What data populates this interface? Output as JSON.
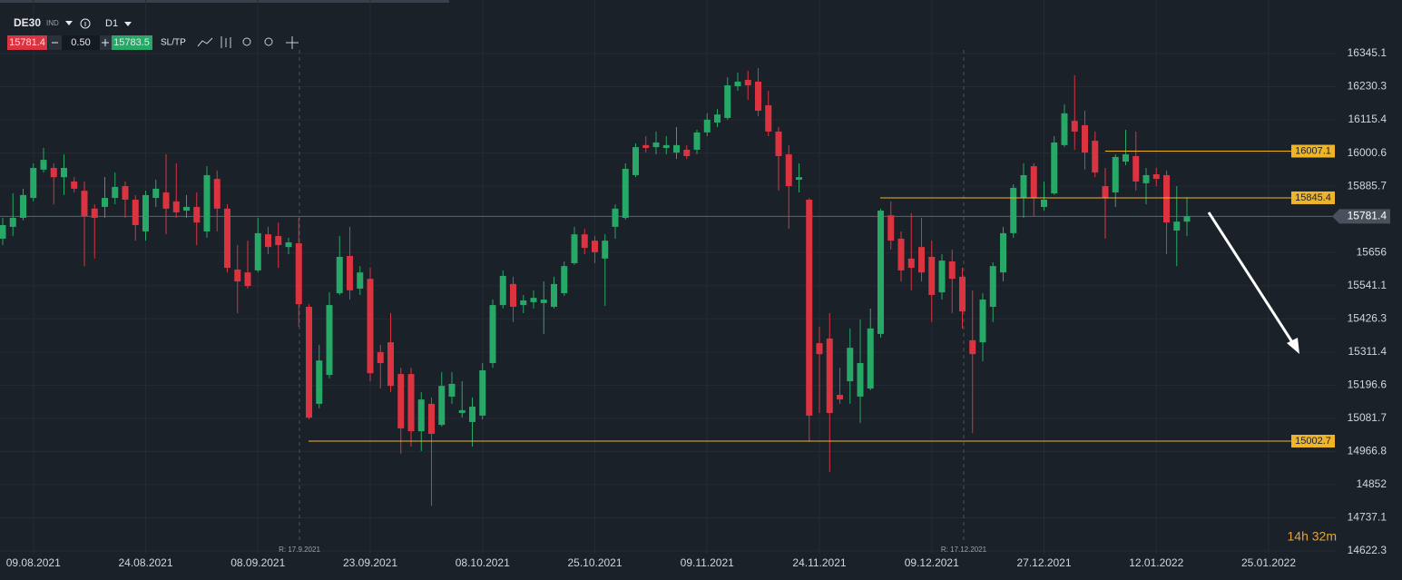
{
  "toolbar": {
    "symbol": "DE30",
    "market": "IND",
    "interval": "D1",
    "sell": "15781.4",
    "volume": "0.50",
    "buy": "15783.5",
    "sltp": "SL/TP"
  },
  "chart_data": {
    "type": "candlestick",
    "categories": [
      null,
      null,
      null,
      "09.08.2021",
      null,
      null,
      null,
      null,
      null,
      null,
      null,
      null,
      null,
      null,
      "24.08.2021",
      null,
      null,
      null,
      null,
      null,
      null,
      null,
      null,
      null,
      null,
      "08.09.2021",
      null,
      null,
      null,
      null,
      null,
      null,
      null,
      null,
      null,
      null,
      "23.09.2021",
      null,
      null,
      null,
      null,
      null,
      null,
      null,
      null,
      null,
      null,
      "08.10.2021",
      null,
      null,
      null,
      null,
      null,
      null,
      null,
      null,
      null,
      null,
      "25.10.2021",
      null,
      null,
      null,
      null,
      null,
      null,
      null,
      null,
      null,
      null,
      "09.11.2021",
      null,
      null,
      null,
      null,
      null,
      null,
      null,
      null,
      null,
      null,
      "24.11.2021",
      null,
      null,
      null,
      null,
      null,
      null,
      null,
      null,
      null,
      null,
      "09.12.2021",
      null,
      null,
      null,
      null,
      null,
      null,
      null,
      null,
      null,
      null,
      "27.12.2021",
      null,
      null,
      null,
      null,
      null,
      null,
      null,
      null,
      null,
      null,
      "12.01.2022",
      null,
      null,
      null,
      null,
      null,
      null,
      null,
      null,
      null,
      null,
      "25.01.2022",
      null,
      null,
      null,
      null,
      null,
      null
    ],
    "open": [
      15704,
      15745,
      15776,
      15845,
      15943,
      15949,
      15917,
      15902,
      15870,
      15808,
      15814,
      15845,
      15886,
      15839,
      15729,
      15845,
      15864,
      15833,
      15801,
      15814,
      15729,
      15911,
      15808,
      15597,
      15587,
      15594,
      15719,
      15713,
      15675,
      15688,
      15468,
      15132,
      15232,
      15515,
      15644,
      15531,
      15565,
      15311,
      15345,
      15235,
      15235,
      15037,
      15132,
      15059,
      15157,
      15100,
      15069,
      15091,
      15273,
      15474,
      15547,
      15474,
      15484,
      15481,
      15468,
      15515,
      15619,
      15719,
      15697,
      15635,
      15745,
      15776,
      15924,
      16028,
      16021,
      16018,
      16002,
      16012,
      16012,
      16072,
      16106,
      16122,
      16232,
      16254,
      16248,
      16166,
      16075,
      15996,
      15908,
      15839,
      15342,
      15358,
      15163,
      15210,
      15157,
      15185,
      15374,
      15785,
      15704,
      15635,
      15675,
      15641,
      15518,
      15625,
      15572,
      15352,
      15345,
      15468,
      15587,
      15723,
      15845,
      15955,
      15814,
      15861,
      16028,
      16112,
      16097,
      16043,
      15886,
      15864,
      15971,
      15990,
      15896,
      15927,
      15924,
      15732,
      15763,
      null,
      null,
      null,
      null,
      null,
      null,
      null,
      null,
      null,
      null,
      null,
      null,
      null,
      null
    ],
    "high": [
      15776,
      15861,
      15877,
      15965,
      16018,
      15965,
      15996,
      15917,
      15902,
      15823,
      15917,
      15933,
      15902,
      15855,
      15870,
      15908,
      15996,
      15965,
      15855,
      15864,
      15955,
      15940,
      15823,
      15682,
      15697,
      15776,
      15745,
      15760,
      15707,
      15776,
      15477,
      15336,
      15518,
      15713,
      15745,
      15609,
      15603,
      15336,
      15446,
      15257,
      15257,
      15172,
      15154,
      15242,
      15242,
      15210,
      15154,
      15273,
      15493,
      15594,
      15572,
      15509,
      15525,
      15556,
      15572,
      15625,
      15745,
      15738,
      15713,
      15719,
      15823,
      15965,
      16034,
      16059,
      16075,
      16059,
      16090,
      16028,
      16081,
      16138,
      16153,
      16263,
      16279,
      16285,
      16295,
      16216,
      16090,
      16028,
      15965,
      15845,
      15399,
      15446,
      15257,
      15393,
      15424,
      15462,
      15808,
      15833,
      15729,
      15792,
      15776,
      15697,
      15650,
      15666,
      15603,
      15525,
      15515,
      15622,
      15745,
      15892,
      15965,
      15965,
      15902,
      16059,
      16169,
      16270,
      16147,
      16075,
      15949,
      15996,
      16081,
      16075,
      15949,
      15949,
      15940,
      15886,
      15848,
      null,
      null,
      null,
      null,
      null,
      null,
      null,
      null,
      null,
      null,
      null,
      null,
      null,
      null
    ],
    "low": [
      15682,
      15713,
      15767,
      15833,
      15933,
      15823,
      15855,
      15864,
      15609,
      15635,
      15776,
      15823,
      15776,
      15697,
      15697,
      15814,
      15719,
      15776,
      15776,
      15682,
      15707,
      15729,
      15587,
      15446,
      15531,
      15587,
      15650,
      15603,
      15650,
      15399,
      15078,
      15116,
      15220,
      15509,
      15493,
      15509,
      15210,
      15185,
      15172,
      14959,
      14984,
      14968,
      14779,
      15053,
      15132,
      15084,
      14984,
      15078,
      15257,
      15462,
      15415,
      15446,
      15462,
      15374,
      15462,
      15506,
      15613,
      15650,
      15619,
      15471,
      15704,
      15770,
      15917,
      16002,
      15996,
      15996,
      15980,
      15980,
      15996,
      16059,
      16090,
      16116,
      16216,
      16185,
      16128,
      16059,
      15870,
      15738,
      15864,
      15000,
      15100,
      14896,
      15132,
      15132,
      15066,
      15179,
      15361,
      15666,
      15556,
      15525,
      15556,
      15415,
      15493,
      15446,
      15393,
      15031,
      15279,
      15415,
      15556,
      15707,
      15776,
      15782,
      15801,
      15855,
      16021,
      16012,
      15943,
      15917,
      15704,
      15814,
      15958,
      15870,
      15823,
      15886,
      15650,
      15609,
      15713,
      null,
      null,
      null,
      null,
      null,
      null,
      null,
      null,
      null,
      null,
      null,
      null,
      null,
      null
    ],
    "close": [
      15751,
      15776,
      15855,
      15949,
      15977,
      15917,
      15949,
      15877,
      15782,
      15776,
      15845,
      15883,
      15839,
      15751,
      15855,
      15877,
      15808,
      15795,
      15814,
      15760,
      15924,
      15808,
      15603,
      15556,
      15540,
      15723,
      15675,
      15682,
      15691,
      15477,
      15084,
      15282,
      15474,
      15641,
      15525,
      15587,
      15238,
      15273,
      15194,
      15047,
      15037,
      15147,
      15028,
      15194,
      15201,
      15110,
      15122,
      15248,
      15474,
      15575,
      15468,
      15490,
      15499,
      15493,
      15547,
      15609,
      15719,
      15672,
      15657,
      15697,
      15808,
      15946,
      16021,
      16018,
      16037,
      16028,
      16028,
      15990,
      16072,
      16116,
      16134,
      16235,
      16248,
      16235,
      16147,
      16075,
      15990,
      15886,
      15917,
      15091,
      15304,
      15100,
      15147,
      15326,
      15273,
      15393,
      15801,
      15697,
      15594,
      15603,
      15587,
      15509,
      15628,
      15565,
      15452,
      15304,
      15493,
      15609,
      15723,
      15880,
      15924,
      15845,
      15839,
      16037,
      16138,
      16075,
      16002,
      15933,
      15845,
      15987,
      15996,
      15902,
      15924,
      15911,
      15760,
      15763,
      15781.4,
      null,
      null,
      null,
      null,
      null,
      null,
      null,
      null,
      null,
      null,
      null,
      null,
      null,
      null
    ],
    "up_color": "#26a867",
    "down_color": "#dc3340",
    "ylim": [
      14612.9,
      16530.6
    ],
    "yticks": [
      16345.1,
      16230.3,
      16115.4,
      16000.6,
      15885.7,
      15656.0,
      15541.1,
      15426.3,
      15311.4,
      15196.6,
      15081.7,
      14966.8,
      14852.0,
      14737.1,
      14622.3
    ],
    "grid": true,
    "last_price": 15781.4,
    "levels": [
      16007.1,
      15845.4,
      15002.7
    ],
    "level_color": "#f0b429",
    "markers": [
      "R: 17.9.2021",
      "R: 17.12.2021"
    ],
    "countdown": "14h 32m"
  }
}
